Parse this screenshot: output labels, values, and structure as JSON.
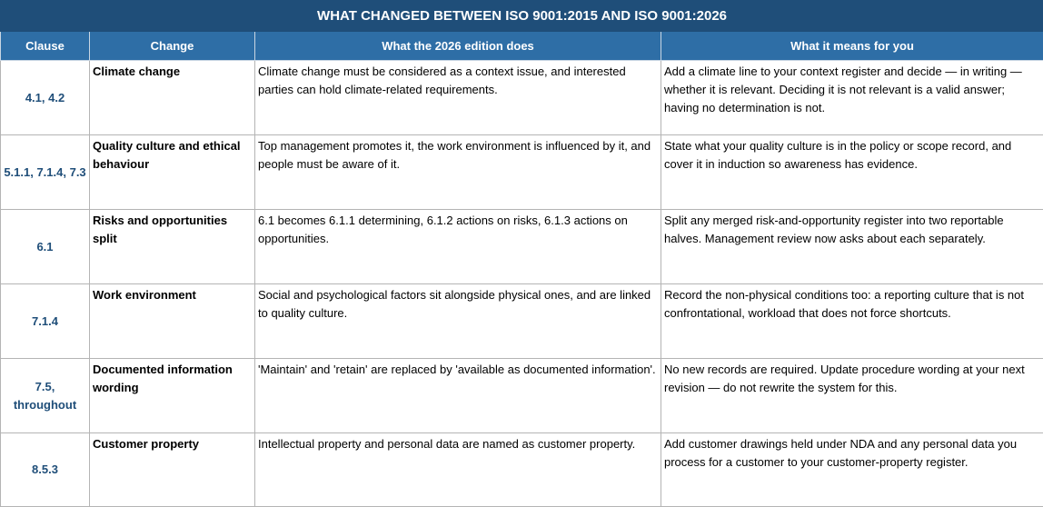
{
  "title": "WHAT CHANGED BETWEEN ISO 9001:2015 AND ISO 9001:2026",
  "headers": {
    "clause": "Clause",
    "change": "Change",
    "does": "What the 2026 edition does",
    "means": "What it means for you"
  },
  "rows": [
    {
      "clause": "4.1, 4.2",
      "change": "Climate change",
      "does": "Climate change must be considered as a context issue, and interested parties can hold climate-related requirements.",
      "means": "Add a climate line to your context register and decide — in writing — whether it is relevant. Deciding it is not relevant is a valid answer; having no determination is not."
    },
    {
      "clause": "5.1.1, 7.1.4, 7.3",
      "change": "Quality culture and ethical behaviour",
      "does": "Top management promotes it, the work environment is influenced by it, and people must be aware of it.",
      "means": "State what your quality culture is in the policy or scope record, and cover it in induction so awareness has evidence."
    },
    {
      "clause": "6.1",
      "change": "Risks and opportunities split",
      "does": "6.1 becomes 6.1.1 determining, 6.1.2 actions on risks, 6.1.3 actions on opportunities.",
      "means": "Split any merged risk-and-opportunity register into two reportable halves. Management review now asks about each separately."
    },
    {
      "clause": "7.1.4",
      "change": "Work environment",
      "does": "Social and psychological factors sit alongside physical ones, and are linked to quality culture.",
      "means": "Record the non-physical conditions too: a reporting culture that is not confrontational, workload that does not force shortcuts."
    },
    {
      "clause": "7.5, throughout",
      "change": "Documented information wording",
      "does": "'Maintain' and 'retain' are replaced by 'available as documented information'.",
      "means": "No new records are required. Update procedure wording at your next revision — do not rewrite the system for this."
    },
    {
      "clause": "8.5.3",
      "change": "Customer property",
      "does": "Intellectual property and personal data are named as customer property.",
      "means": "Add customer drawings held under NDA and any personal data you process for a customer to your customer-property register."
    }
  ]
}
